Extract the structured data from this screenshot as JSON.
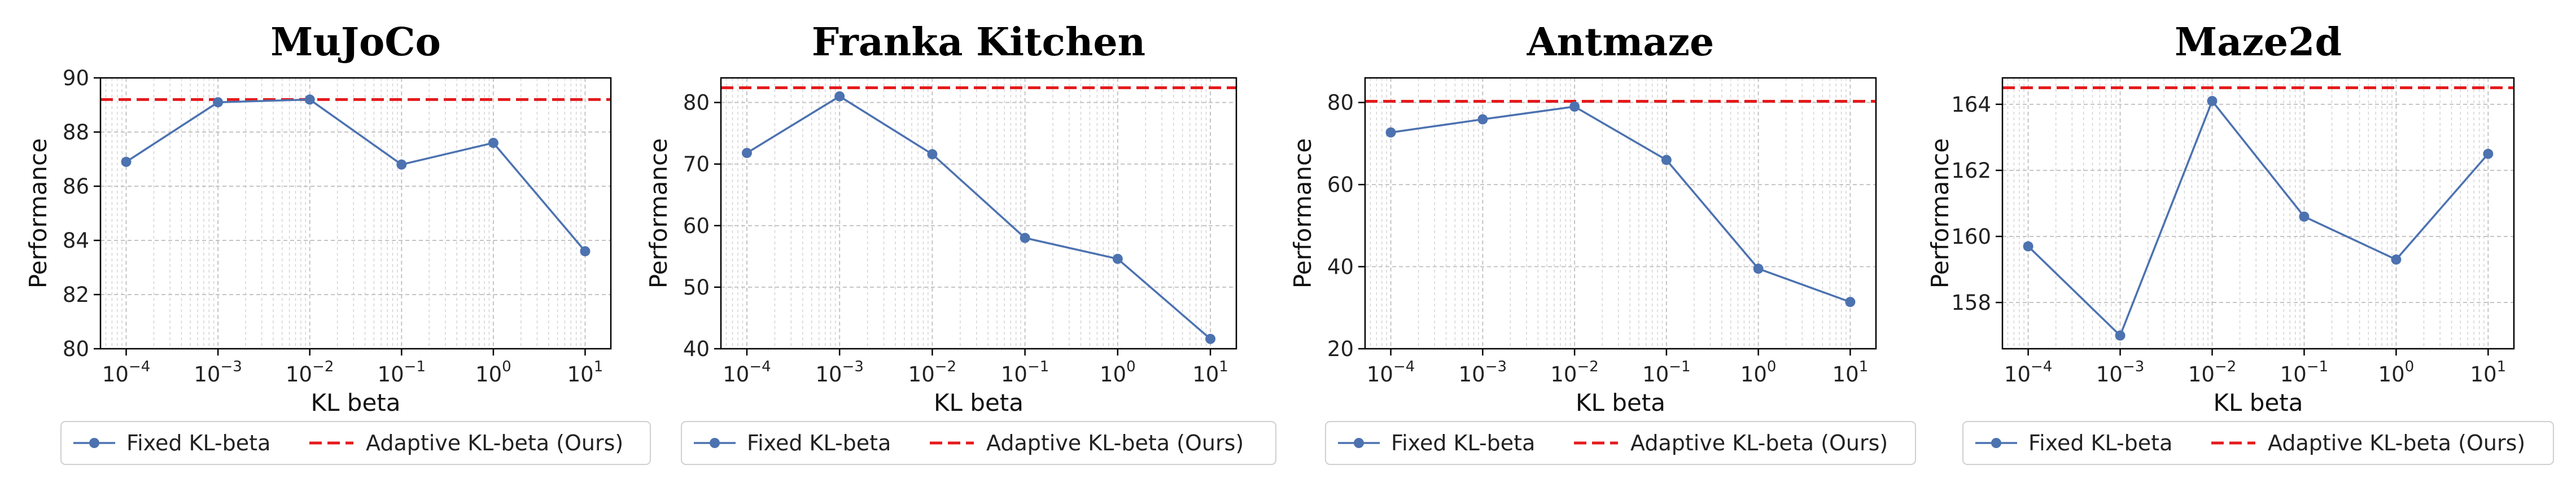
{
  "legend": {
    "fixed_label": "Fixed KL-beta",
    "adaptive_label": "Adaptive KL-beta (Ours)"
  },
  "colors": {
    "fixed": "#4C72B0",
    "adaptive": "#e41a1c"
  },
  "chart_data": [
    {
      "type": "line",
      "title": "MuJoCo",
      "xlabel": "KL beta",
      "ylabel": "Performance",
      "xscale": "log",
      "x": [
        0.0001,
        0.001,
        0.01,
        0.1,
        1,
        10
      ],
      "xtick_exponents": [
        "-4",
        "-3",
        "-2",
        "-1",
        "0",
        "1"
      ],
      "ylim": [
        80,
        90
      ],
      "yticks": [
        80,
        82,
        84,
        86,
        88,
        90
      ],
      "grid": true,
      "legend_position": "bottom",
      "series": [
        {
          "name": "Fixed KL-beta",
          "style": "solid-marker",
          "values": [
            86.9,
            89.1,
            89.2,
            86.8,
            87.6,
            83.6
          ]
        },
        {
          "name": "Adaptive KL-beta (Ours)",
          "style": "dashed-horizontal",
          "value": 89.2
        }
      ]
    },
    {
      "type": "line",
      "title": "Franka Kitchen",
      "xlabel": "KL beta",
      "ylabel": "Performance",
      "xscale": "log",
      "x": [
        0.0001,
        0.001,
        0.01,
        0.1,
        1,
        10
      ],
      "xtick_exponents": [
        "-4",
        "-3",
        "-2",
        "-1",
        "0",
        "1"
      ],
      "ylim": [
        40,
        84
      ],
      "yticks": [
        40,
        50,
        60,
        70,
        80
      ],
      "grid": true,
      "legend_position": "bottom",
      "series": [
        {
          "name": "Fixed KL-beta",
          "style": "solid-marker",
          "values": [
            71.8,
            81.0,
            71.6,
            58.0,
            54.6,
            41.6
          ]
        },
        {
          "name": "Adaptive KL-beta (Ours)",
          "style": "dashed-horizontal",
          "value": 82.4
        }
      ]
    },
    {
      "type": "line",
      "title": "Antmaze",
      "xlabel": "KL beta",
      "ylabel": "Performance",
      "xscale": "log",
      "x": [
        0.0001,
        0.001,
        0.01,
        0.1,
        1,
        10
      ],
      "xtick_exponents": [
        "-4",
        "-3",
        "-2",
        "-1",
        "0",
        "1"
      ],
      "ylim": [
        20,
        86
      ],
      "yticks": [
        20,
        40,
        60,
        80
      ],
      "grid": true,
      "legend_position": "bottom",
      "series": [
        {
          "name": "Fixed KL-beta",
          "style": "solid-marker",
          "values": [
            72.7,
            75.9,
            79.0,
            66.0,
            39.5,
            31.4
          ]
        },
        {
          "name": "Adaptive KL-beta (Ours)",
          "style": "dashed-horizontal",
          "value": 80.3
        }
      ]
    },
    {
      "type": "line",
      "title": "Maze2d",
      "xlabel": "KL beta",
      "ylabel": "Performance",
      "xscale": "log",
      "x": [
        0.0001,
        0.001,
        0.01,
        0.1,
        1,
        10
      ],
      "xtick_exponents": [
        "-4",
        "-3",
        "-2",
        "-1",
        "0",
        "1"
      ],
      "ylim": [
        156.6,
        164.8
      ],
      "yticks": [
        158,
        160,
        162,
        164
      ],
      "grid": true,
      "legend_position": "bottom",
      "series": [
        {
          "name": "Fixed KL-beta",
          "style": "solid-marker",
          "values": [
            159.7,
            157.0,
            164.1,
            160.6,
            159.3,
            162.5
          ]
        },
        {
          "name": "Adaptive KL-beta (Ours)",
          "style": "dashed-horizontal",
          "value": 164.5
        }
      ]
    }
  ]
}
